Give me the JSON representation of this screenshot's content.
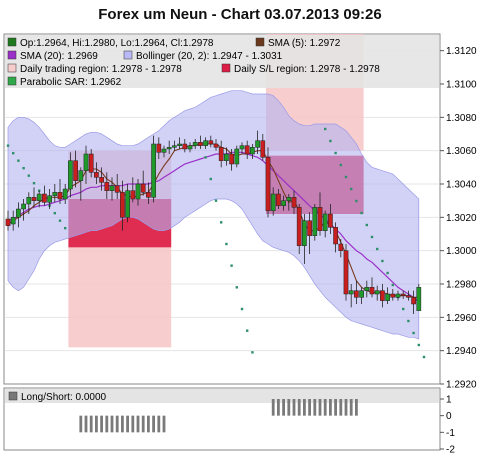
{
  "chart_data": {
    "type": "candlestick",
    "title": "Forex um Neun - Chart 03.07.2013 09:26",
    "ylim": [
      0.292,
      1.313
    ],
    "y_ticks": [
      "1.3120",
      "1.3100",
      "1.3080",
      "1.3060",
      "1.3040",
      "1.3020",
      "1.3000",
      "1.2980",
      "1.2960",
      "1.2940",
      "1.2920"
    ],
    "legend": [
      {
        "text": "Op:1.2964, Hi:1.2980, Lo:1.2964, Cl:1.2978",
        "color": "#1f7a1f"
      },
      {
        "text": "SMA (5): 1.2972",
        "color": "#6b3a1e"
      },
      {
        "text": "SMA (20): 1.2969",
        "color": "#9b30c8"
      },
      {
        "text": "Bollinger (20, 2): 1.2947 - 1.3031",
        "color": "#b9b9f5"
      },
      {
        "text": "Daily trading region: 1.2978 - 1.2978",
        "color": "#f6cccc"
      },
      {
        "text": "Daily S/L region: 1.2978 - 1.2978",
        "color": "#dc1e46"
      },
      {
        "text": "Parabolic SAR: 1.2962",
        "color": "#2fa84a"
      }
    ],
    "candles": [
      {
        "o": 1.3019,
        "h": 1.3024,
        "l": 1.3012,
        "c": 1.3015
      },
      {
        "o": 1.3016,
        "h": 1.3024,
        "l": 1.3012,
        "c": 1.302
      },
      {
        "o": 1.302,
        "h": 1.3029,
        "l": 1.3014,
        "c": 1.3025
      },
      {
        "o": 1.3025,
        "h": 1.3031,
        "l": 1.3018,
        "c": 1.3028
      },
      {
        "o": 1.3028,
        "h": 1.3035,
        "l": 1.3022,
        "c": 1.3032
      },
      {
        "o": 1.3032,
        "h": 1.3038,
        "l": 1.3026,
        "c": 1.303
      },
      {
        "o": 1.303,
        "h": 1.3036,
        "l": 1.3026,
        "c": 1.3034
      },
      {
        "o": 1.3034,
        "h": 1.3039,
        "l": 1.3027,
        "c": 1.3029
      },
      {
        "o": 1.3029,
        "h": 1.3037,
        "l": 1.3025,
        "c": 1.3033
      },
      {
        "o": 1.3033,
        "h": 1.304,
        "l": 1.3029,
        "c": 1.3035
      },
      {
        "o": 1.3035,
        "h": 1.3043,
        "l": 1.3028,
        "c": 1.3031
      },
      {
        "o": 1.3031,
        "h": 1.304,
        "l": 1.3028,
        "c": 1.3037
      },
      {
        "o": 1.3037,
        "h": 1.3059,
        "l": 1.3032,
        "c": 1.3054
      },
      {
        "o": 1.3054,
        "h": 1.306,
        "l": 1.3038,
        "c": 1.3042
      },
      {
        "o": 1.3042,
        "h": 1.305,
        "l": 1.303,
        "c": 1.3048
      },
      {
        "o": 1.3048,
        "h": 1.3063,
        "l": 1.304,
        "c": 1.3058
      },
      {
        "o": 1.3058,
        "h": 1.3061,
        "l": 1.3044,
        "c": 1.3047
      },
      {
        "o": 1.3047,
        "h": 1.3053,
        "l": 1.304,
        "c": 1.3044
      },
      {
        "o": 1.3044,
        "h": 1.305,
        "l": 1.3036,
        "c": 1.3041
      },
      {
        "o": 1.3041,
        "h": 1.3047,
        "l": 1.3031,
        "c": 1.3036
      },
      {
        "o": 1.3036,
        "h": 1.3044,
        "l": 1.303,
        "c": 1.3039
      },
      {
        "o": 1.3039,
        "h": 1.3046,
        "l": 1.3031,
        "c": 1.3035
      },
      {
        "o": 1.3035,
        "h": 1.3042,
        "l": 1.3012,
        "c": 1.302
      },
      {
        "o": 1.302,
        "h": 1.304,
        "l": 1.3017,
        "c": 1.3036
      },
      {
        "o": 1.3036,
        "h": 1.3044,
        "l": 1.3029,
        "c": 1.3031
      },
      {
        "o": 1.3031,
        "h": 1.3043,
        "l": 1.3027,
        "c": 1.304
      },
      {
        "o": 1.304,
        "h": 1.3048,
        "l": 1.3033,
        "c": 1.3035
      },
      {
        "o": 1.3035,
        "h": 1.3041,
        "l": 1.3028,
        "c": 1.3032
      },
      {
        "o": 1.3032,
        "h": 1.3069,
        "l": 1.3029,
        "c": 1.3064
      },
      {
        "o": 1.3064,
        "h": 1.3068,
        "l": 1.3055,
        "c": 1.3059
      },
      {
        "o": 1.3059,
        "h": 1.3063,
        "l": 1.3056,
        "c": 1.3061
      },
      {
        "o": 1.3061,
        "h": 1.3066,
        "l": 1.3058,
        "c": 1.3062
      },
      {
        "o": 1.3062,
        "h": 1.3066,
        "l": 1.306,
        "c": 1.3063
      },
      {
        "o": 1.3063,
        "h": 1.3068,
        "l": 1.3061,
        "c": 1.3064
      },
      {
        "o": 1.3064,
        "h": 1.3067,
        "l": 1.3059,
        "c": 1.3061
      },
      {
        "o": 1.3061,
        "h": 1.3065,
        "l": 1.3059,
        "c": 1.3063
      },
      {
        "o": 1.3063,
        "h": 1.3067,
        "l": 1.3061,
        "c": 1.3065
      },
      {
        "o": 1.3065,
        "h": 1.3069,
        "l": 1.3061,
        "c": 1.3063
      },
      {
        "o": 1.3063,
        "h": 1.3068,
        "l": 1.3061,
        "c": 1.3066
      },
      {
        "o": 1.3066,
        "h": 1.3069,
        "l": 1.3062,
        "c": 1.3064
      },
      {
        "o": 1.3064,
        "h": 1.3067,
        "l": 1.306,
        "c": 1.3062
      },
      {
        "o": 1.3062,
        "h": 1.3066,
        "l": 1.305,
        "c": 1.3054
      },
      {
        "o": 1.3054,
        "h": 1.3062,
        "l": 1.3051,
        "c": 1.3058
      },
      {
        "o": 1.3058,
        "h": 1.3061,
        "l": 1.3048,
        "c": 1.3052
      },
      {
        "o": 1.3052,
        "h": 1.3063,
        "l": 1.305,
        "c": 1.3061
      },
      {
        "o": 1.3061,
        "h": 1.3065,
        "l": 1.3058,
        "c": 1.3063
      },
      {
        "o": 1.3063,
        "h": 1.3066,
        "l": 1.3055,
        "c": 1.3058
      },
      {
        "o": 1.3058,
        "h": 1.3064,
        "l": 1.3055,
        "c": 1.3062
      },
      {
        "o": 1.3062,
        "h": 1.3072,
        "l": 1.3058,
        "c": 1.3066
      },
      {
        "o": 1.3066,
        "h": 1.307,
        "l": 1.3054,
        "c": 1.3056
      },
      {
        "o": 1.3056,
        "h": 1.3062,
        "l": 1.302,
        "c": 1.3024
      },
      {
        "o": 1.3024,
        "h": 1.3038,
        "l": 1.3021,
        "c": 1.3034
      },
      {
        "o": 1.3034,
        "h": 1.3037,
        "l": 1.3025,
        "c": 1.3027
      },
      {
        "o": 1.3027,
        "h": 1.3033,
        "l": 1.3024,
        "c": 1.303
      },
      {
        "o": 1.303,
        "h": 1.3034,
        "l": 1.3024,
        "c": 1.3032
      },
      {
        "o": 1.3032,
        "h": 1.3036,
        "l": 1.3022,
        "c": 1.3026
      },
      {
        "o": 1.3026,
        "h": 1.3028,
        "l": 1.2998,
        "c": 1.3003
      },
      {
        "o": 1.3003,
        "h": 1.3022,
        "l": 1.2992,
        "c": 1.3018
      },
      {
        "o": 1.3018,
        "h": 1.3023,
        "l": 1.2998,
        "c": 1.3009
      },
      {
        "o": 1.3009,
        "h": 1.3028,
        "l": 1.3006,
        "c": 1.3026
      },
      {
        "o": 1.3026,
        "h": 1.3035,
        "l": 1.3009,
        "c": 1.3012
      },
      {
        "o": 1.3012,
        "h": 1.3024,
        "l": 1.3008,
        "c": 1.3022
      },
      {
        "o": 1.3022,
        "h": 1.3028,
        "l": 1.301,
        "c": 1.3014
      },
      {
        "o": 1.3014,
        "h": 1.3017,
        "l": 1.2999,
        "c": 1.3004
      },
      {
        "o": 1.3004,
        "h": 1.3007,
        "l": 1.2996,
        "c": 1.3
      },
      {
        "o": 1.3,
        "h": 1.3004,
        "l": 1.297,
        "c": 1.2974
      },
      {
        "o": 1.2974,
        "h": 1.298,
        "l": 1.2966,
        "c": 1.2976
      },
      {
        "o": 1.2976,
        "h": 1.2982,
        "l": 1.2968,
        "c": 1.2972
      },
      {
        "o": 1.2972,
        "h": 1.2978,
        "l": 1.2968,
        "c": 1.2976
      },
      {
        "o": 1.2976,
        "h": 1.2982,
        "l": 1.2972,
        "c": 1.2978
      },
      {
        "o": 1.2978,
        "h": 1.2984,
        "l": 1.2972,
        "c": 1.2974
      },
      {
        "o": 1.2974,
        "h": 1.2979,
        "l": 1.297,
        "c": 1.2976
      },
      {
        "o": 1.2976,
        "h": 1.298,
        "l": 1.2966,
        "c": 1.297
      },
      {
        "o": 1.297,
        "h": 1.2978,
        "l": 1.2968,
        "c": 1.2974
      },
      {
        "o": 1.2974,
        "h": 1.2977,
        "l": 1.297,
        "c": 1.2972
      },
      {
        "o": 1.2972,
        "h": 1.2976,
        "l": 1.297,
        "c": 1.2974
      },
      {
        "o": 1.2974,
        "h": 1.2976,
        "l": 1.2971,
        "c": 1.2973
      },
      {
        "o": 1.2973,
        "h": 1.2976,
        "l": 1.297,
        "c": 1.2972
      },
      {
        "o": 1.2972,
        "h": 1.2976,
        "l": 1.2962,
        "c": 1.2968
      },
      {
        "o": 1.2964,
        "h": 1.298,
        "l": 1.2964,
        "c": 1.2978
      }
    ],
    "sma5": [
      1.3016,
      1.3018,
      1.302,
      1.3022,
      1.3024,
      1.3027,
      1.3029,
      1.3031,
      1.3032,
      1.3032,
      1.3032,
      1.3033,
      1.3038,
      1.304,
      1.3042,
      1.3048,
      1.3049,
      1.3049,
      1.3047,
      1.3043,
      1.3041,
      1.3038,
      1.3034,
      1.3033,
      1.3032,
      1.3033,
      1.3034,
      1.3035,
      1.304,
      1.3046,
      1.3051,
      1.3055,
      1.306,
      1.3061,
      1.3062,
      1.3063,
      1.3063,
      1.3064,
      1.3064,
      1.3064,
      1.3064,
      1.3062,
      1.3061,
      1.3058,
      1.3057,
      1.3058,
      1.3058,
      1.3059,
      1.306,
      1.306,
      1.3054,
      1.3049,
      1.3042,
      1.3035,
      1.3029,
      1.303,
      1.3024,
      1.3016,
      1.3012,
      1.3012,
      1.3014,
      1.3017,
      1.3016,
      1.3012,
      1.3005,
      1.2998,
      1.299,
      1.2982,
      1.2978,
      1.2976,
      1.2975,
      1.2975,
      1.2975,
      1.2974,
      1.2973,
      1.2973,
      1.2973,
      1.2973,
      1.2972,
      1.2972
    ],
    "sma20": [
      1.3018,
      1.3019,
      1.3021,
      1.3023,
      1.3025,
      1.3026,
      1.3027,
      1.3027,
      1.3028,
      1.3029,
      1.303,
      1.3031,
      1.3033,
      1.3034,
      1.3035,
      1.3037,
      1.3038,
      1.3038,
      1.3039,
      1.3039,
      1.3039,
      1.3039,
      1.3039,
      1.304,
      1.304,
      1.304,
      1.304,
      1.304,
      1.3041,
      1.3042,
      1.3044,
      1.3046,
      1.3048,
      1.305,
      1.3052,
      1.3053,
      1.3054,
      1.3055,
      1.3056,
      1.3057,
      1.3058,
      1.3058,
      1.3058,
      1.3059,
      1.3059,
      1.3059,
      1.3058,
      1.3057,
      1.3056,
      1.3054,
      1.3051,
      1.3048,
      1.3045,
      1.3042,
      1.3039,
      1.3036,
      1.3033,
      1.303,
      1.3027,
      1.3024,
      1.3022,
      1.3019,
      1.3016,
      1.3013,
      1.301,
      1.3006,
      1.3003,
      1.3,
      1.2998,
      1.2995,
      1.2993,
      1.299,
      1.2987,
      1.2984,
      1.2981,
      1.2978,
      1.2976,
      1.2974,
      1.2972,
      1.2969
    ],
    "boll_upper": [
      1.3074,
      1.3078,
      1.308,
      1.308,
      1.3079,
      1.3077,
      1.3074,
      1.307,
      1.3066,
      1.3063,
      1.3062,
      1.3062,
      1.3064,
      1.3066,
      1.3068,
      1.307,
      1.3071,
      1.3071,
      1.307,
      1.3068,
      1.3066,
      1.3064,
      1.3063,
      1.3063,
      1.3063,
      1.3064,
      1.3066,
      1.3068,
      1.307,
      1.3072,
      1.3075,
      1.3078,
      1.308,
      1.3082,
      1.3084,
      1.3085,
      1.3086,
      1.3088,
      1.309,
      1.3092,
      1.3093,
      1.3094,
      1.3095,
      1.3096,
      1.3096,
      1.3096,
      1.3095,
      1.3094,
      1.3094,
      1.3094,
      1.3094,
      1.3093,
      1.309,
      1.3086,
      1.3081,
      1.3078,
      1.3076,
      1.3075,
      1.3075,
      1.3076,
      1.3076,
      1.3076,
      1.3076,
      1.3076,
      1.3074,
      1.3072,
      1.3068,
      1.3064,
      1.3058,
      1.3053,
      1.305,
      1.3049,
      1.3048,
      1.3047,
      1.3046,
      1.3043,
      1.304,
      1.3037,
      1.3034,
      1.3031
    ],
    "boll_lower": [
      1.2982,
      1.2978,
      1.2976,
      1.2978,
      1.2983,
      1.2988,
      1.2995,
      1.3,
      1.3003,
      1.3005,
      1.3006,
      1.3007,
      1.3008,
      1.3009,
      1.301,
      1.3011,
      1.3012,
      1.3012,
      1.3013,
      1.3014,
      1.3015,
      1.3017,
      1.3019,
      1.302,
      1.302,
      1.3019,
      1.3017,
      1.3015,
      1.3013,
      1.3012,
      1.3012,
      1.3013,
      1.3015,
      1.3017,
      1.302,
      1.3022,
      1.3024,
      1.3026,
      1.3028,
      1.303,
      1.3031,
      1.3031,
      1.3031,
      1.303,
      1.3028,
      1.3025,
      1.302,
      1.3015,
      1.301,
      1.3006,
      1.3004,
      1.3002,
      1.3001,
      1.3,
      1.2999,
      1.2997,
      1.2994,
      1.299,
      1.2985,
      1.298,
      1.2976,
      1.2972,
      1.2969,
      1.2966,
      1.2963,
      1.296,
      1.2958,
      1.2957,
      1.2956,
      1.2955,
      1.2954,
      1.2953,
      1.2952,
      1.2951,
      1.295,
      1.295,
      1.2949,
      1.2948,
      1.2948,
      1.2947
    ],
    "sar_start": 1.3063,
    "sar_step": -0.00045,
    "sar2_start": 1.3073,
    "sar2_step": -0.00072,
    "trading_regions": [
      {
        "from": 12,
        "to": 31,
        "low": 1.2942,
        "high": 1.306
      },
      {
        "from": 50,
        "to": 68,
        "low": 1.306,
        "high": 1.313
      }
    ],
    "sl_regions": [
      {
        "from": 12,
        "to": 31,
        "low": 1.3002,
        "high": 1.3031
      },
      {
        "from": 50,
        "to": 68,
        "low": 1.3022,
        "high": 1.3057
      }
    ],
    "indicator": {
      "label": "Long/Short: 0.0000",
      "ylim": [
        -2,
        1
      ],
      "y_ticks": [
        "1",
        "0",
        "-1",
        "-2"
      ],
      "bars": [
        {
          "from": 14,
          "to": 30,
          "value": -1
        },
        {
          "from": 51,
          "to": 67,
          "value": 1
        }
      ]
    }
  }
}
